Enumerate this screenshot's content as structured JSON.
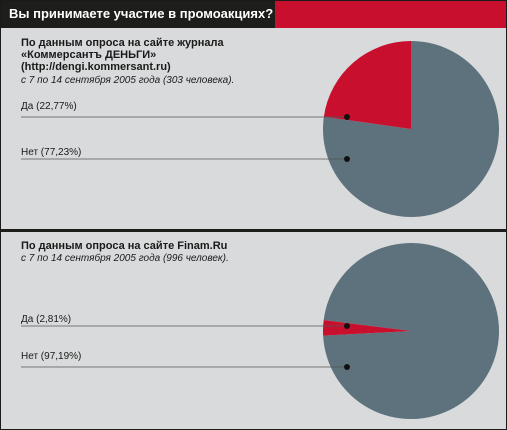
{
  "header": {
    "title": "Вы принимаете участие в промоакциях?"
  },
  "surveys": [
    {
      "heading_lines": [
        "По данным опроса на сайте журнала",
        "«Коммерсантъ ДЕНЬГИ»",
        "(http://dengi.kommersant.ru)"
      ],
      "meta": "с 7  по 14 сентября 2005 года (303 человека).",
      "labels": [
        "Да (22,77%)",
        "Нет (77,23%)"
      ]
    },
    {
      "heading_lines": [
        "По данным опроса на сайте Finam.Ru"
      ],
      "meta": "с 7  по 14 сентября 2005 года (996 человек).",
      "labels": [
        "Да (2,81%)",
        "Нет (97,19%)"
      ]
    }
  ],
  "colors": {
    "yes": "#c8102e",
    "no": "#5d727c",
    "leader": "#555555",
    "dot": "#111111"
  },
  "chart_data": [
    {
      "type": "pie",
      "categories": [
        "Да",
        "Нет"
      ],
      "values": [
        22.77,
        77.23
      ]
    },
    {
      "type": "pie",
      "categories": [
        "Да",
        "Нет"
      ],
      "values": [
        2.81,
        97.19
      ]
    }
  ]
}
